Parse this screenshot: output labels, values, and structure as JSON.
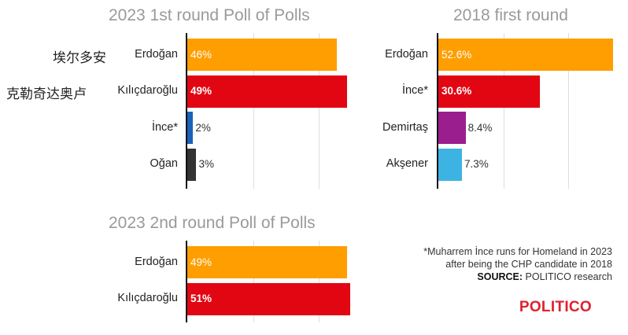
{
  "colors": {
    "orange": "#FF9E00",
    "red": "#E20613",
    "blue": "#1A63B8",
    "dark": "#333333",
    "purple": "#9B1E8E",
    "cyan": "#3DB3E3",
    "title_gray": "#9A9A9A",
    "brand": "#E0202E"
  },
  "chart_data": [
    {
      "type": "bar",
      "orientation": "horizontal",
      "title": "2023 1st round Poll of Polls",
      "categories": [
        "Erdoğan",
        "Kılıçdaroğlu",
        "İnce*",
        "Oğan"
      ],
      "category_aliases": [
        "埃尔多安",
        "克勒奇达奥卢",
        "",
        ""
      ],
      "values": [
        46,
        49,
        2,
        3
      ],
      "value_labels": [
        "46%",
        "49%",
        "2%",
        "3%"
      ],
      "bar_colors": [
        "#FF9E00",
        "#E20613",
        "#1A63B8",
        "#333333"
      ],
      "xlim": [
        0,
        50
      ],
      "grid": true
    },
    {
      "type": "bar",
      "orientation": "horizontal",
      "title": "2018 first round",
      "categories": [
        "Erdoğan",
        "İnce*",
        "Demirtaş",
        "Akşener"
      ],
      "values": [
        52.6,
        30.6,
        8.4,
        7.3
      ],
      "value_labels": [
        "52.6%",
        "30.6%",
        "8.4%",
        "7.3%"
      ],
      "bar_colors": [
        "#FF9E00",
        "#E20613",
        "#9B1E8E",
        "#3DB3E3"
      ],
      "xlim": [
        0,
        52.6
      ],
      "grid": true
    },
    {
      "type": "bar",
      "orientation": "horizontal",
      "title": "2023 2nd round Poll of Polls",
      "categories": [
        "Erdoğan",
        "Kılıçdaroğlu"
      ],
      "values": [
        49,
        51
      ],
      "value_labels": [
        "49%",
        "51%"
      ],
      "bar_colors": [
        "#FF9E00",
        "#E20613"
      ],
      "xlim": [
        0,
        50
      ],
      "grid": true
    }
  ],
  "footnote": {
    "line1": "*Muharrem İnce runs for Homeland in 2023",
    "line2": "after being the CHP candidate in 2018",
    "source_label": "SOURCE:",
    "source_text": "POLITICO research"
  },
  "logo": "POLITICO"
}
